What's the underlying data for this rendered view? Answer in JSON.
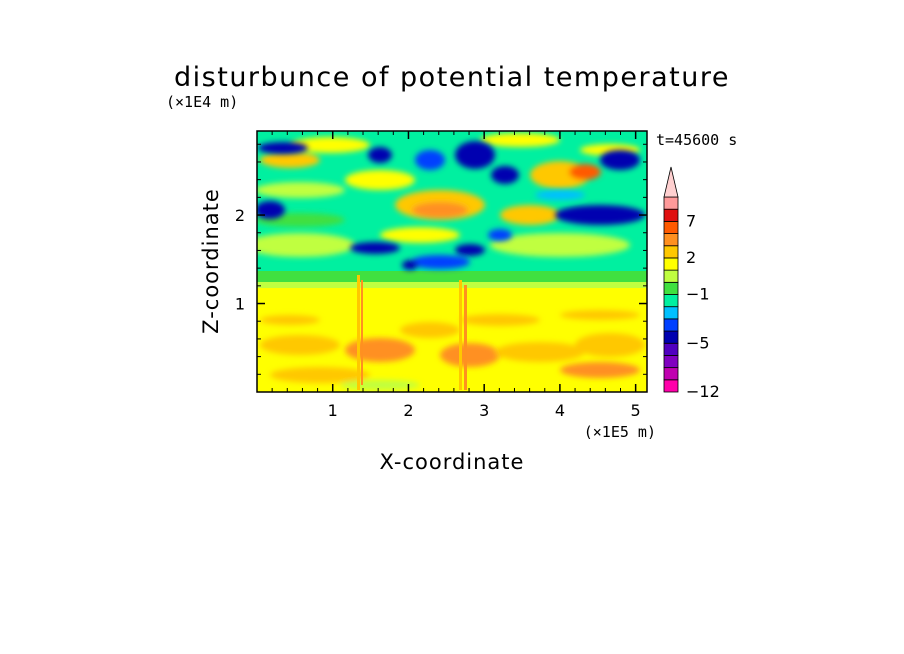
{
  "chart_data": {
    "type": "heatmap",
    "title": "disturbunce of potential temperature",
    "xlabel": "X-coordinate",
    "ylabel": "Z-coordinate",
    "x_units": "(×1E5 m)",
    "y_units": "(×1E4 m)",
    "time_label": "t=45600 s",
    "xlim": [
      0,
      5.15
    ],
    "ylim": [
      0,
      2.95
    ],
    "x_ticks": [
      "1",
      "2",
      "3",
      "4",
      "5"
    ],
    "y_ticks": [
      "1",
      "2"
    ],
    "x_tick_values": [
      1,
      2,
      3,
      4,
      5
    ],
    "y_tick_values": [
      1,
      2
    ],
    "colorbar": {
      "levels": [
        -12,
        -10,
        -8,
        -6,
        -5,
        -4,
        -3,
        -2,
        -1,
        0,
        1,
        2,
        3,
        5,
        7,
        9,
        11
      ],
      "labels": [
        "-12",
        "-5",
        "-1",
        "2",
        "7"
      ],
      "label_values": [
        -12,
        -5,
        -1,
        2,
        7
      ],
      "colors": [
        "#ff00aa",
        "#c000b0",
        "#8000c0",
        "#5000c0",
        "#0000b0",
        "#0040ff",
        "#00c0ff",
        "#00f0a0",
        "#40e040",
        "#c0ff40",
        "#ffff00",
        "#ffc800",
        "#ff9020",
        "#ff5a00",
        "#e01010",
        "#ff9a9a",
        "#ffd0d0"
      ],
      "extend": "max"
    },
    "field_description_rows": [
      {
        "z_range": [
          0,
          0.2
        ],
        "dominant_value": 2
      },
      {
        "z_range": [
          0.2,
          1.1
        ],
        "dominant_value": 2
      },
      {
        "z_range": [
          1.1,
          1.3
        ],
        "dominant_value": 1
      },
      {
        "z_range": [
          1.3,
          1.5
        ],
        "dominant_value": 0
      },
      {
        "z_range": [
          1.5,
          2.95
        ],
        "dominant_value": -1
      }
    ]
  }
}
